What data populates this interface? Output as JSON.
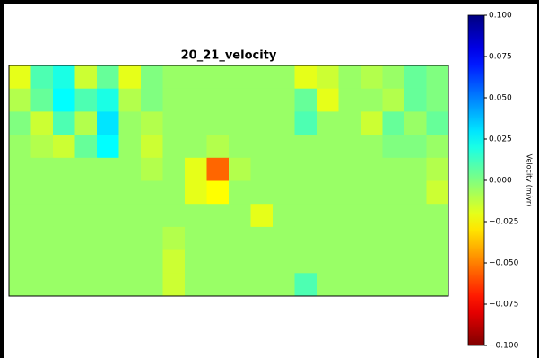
{
  "chart_data": {
    "type": "heatmap",
    "title": "20_21_velocity",
    "colorbar_label": "Velocity (m/yr)",
    "colormap": "jet",
    "reverse": true,
    "zlim": [
      -0.1,
      0.1
    ],
    "zticks": [
      {
        "value": 0.1,
        "label": "0.100"
      },
      {
        "value": 0.075,
        "label": "0.075"
      },
      {
        "value": 0.05,
        "label": "0.050"
      },
      {
        "value": 0.025,
        "label": "0.025"
      },
      {
        "value": 0,
        "label": "0.000"
      },
      {
        "value": -0.025,
        "label": "−0.025"
      },
      {
        "value": -0.05,
        "label": "−0.050"
      },
      {
        "value": -0.075,
        "label": "−0.075"
      },
      {
        "value": -0.1,
        "label": "−0.100"
      }
    ],
    "values": [
      [
        -0.02,
        0.01,
        0.02,
        -0.015,
        0.005,
        -0.02,
        0.0,
        -0.005,
        -0.005,
        -0.005,
        -0.005,
        -0.005,
        -0.005,
        -0.02,
        -0.015,
        -0.005,
        -0.01,
        -0.005,
        0.005,
        0.0
      ],
      [
        -0.01,
        0.005,
        0.025,
        0.01,
        0.02,
        -0.01,
        0.0,
        -0.005,
        -0.005,
        -0.005,
        -0.005,
        -0.005,
        -0.005,
        0.005,
        -0.02,
        -0.005,
        -0.005,
        -0.01,
        0.005,
        0.0
      ],
      [
        0.0,
        -0.015,
        0.01,
        -0.01,
        0.03,
        -0.005,
        -0.01,
        -0.005,
        -0.005,
        -0.005,
        -0.005,
        -0.005,
        -0.005,
        0.01,
        -0.005,
        -0.005,
        -0.015,
        0.005,
        -0.005,
        0.005
      ],
      [
        -0.005,
        -0.01,
        -0.015,
        0.005,
        0.025,
        -0.005,
        -0.015,
        -0.005,
        -0.005,
        -0.01,
        -0.005,
        -0.005,
        -0.005,
        -0.005,
        -0.005,
        -0.005,
        -0.005,
        0.0,
        0.0,
        -0.005
      ],
      [
        -0.005,
        -0.005,
        -0.005,
        -0.005,
        -0.005,
        -0.005,
        -0.01,
        -0.005,
        -0.02,
        -0.055,
        -0.01,
        -0.005,
        -0.005,
        -0.005,
        -0.005,
        -0.005,
        -0.005,
        -0.005,
        -0.005,
        -0.01
      ],
      [
        -0.005,
        -0.005,
        -0.005,
        -0.005,
        -0.005,
        -0.005,
        -0.005,
        -0.005,
        -0.02,
        -0.025,
        -0.005,
        -0.005,
        -0.005,
        -0.005,
        -0.005,
        -0.005,
        -0.005,
        -0.005,
        -0.005,
        -0.015
      ],
      [
        -0.005,
        -0.005,
        -0.005,
        -0.005,
        -0.005,
        -0.005,
        -0.005,
        -0.005,
        -0.005,
        -0.005,
        -0.005,
        -0.02,
        -0.005,
        -0.005,
        -0.005,
        -0.005,
        -0.005,
        -0.005,
        -0.005,
        -0.005
      ],
      [
        -0.005,
        -0.005,
        -0.005,
        -0.005,
        -0.005,
        -0.005,
        -0.005,
        -0.01,
        -0.005,
        -0.005,
        -0.005,
        -0.005,
        -0.005,
        -0.005,
        -0.005,
        -0.005,
        -0.005,
        -0.005,
        -0.005,
        -0.005
      ],
      [
        -0.005,
        -0.005,
        -0.005,
        -0.005,
        -0.005,
        -0.005,
        -0.005,
        -0.015,
        -0.005,
        -0.005,
        -0.005,
        -0.005,
        -0.005,
        -0.005,
        -0.005,
        -0.005,
        -0.005,
        -0.005,
        -0.005,
        -0.005
      ],
      [
        -0.005,
        -0.005,
        -0.005,
        -0.005,
        -0.005,
        -0.005,
        -0.005,
        -0.015,
        -0.005,
        -0.005,
        -0.005,
        -0.005,
        -0.005,
        0.01,
        -0.005,
        -0.005,
        -0.005,
        -0.005,
        -0.005,
        -0.005
      ]
    ]
  }
}
